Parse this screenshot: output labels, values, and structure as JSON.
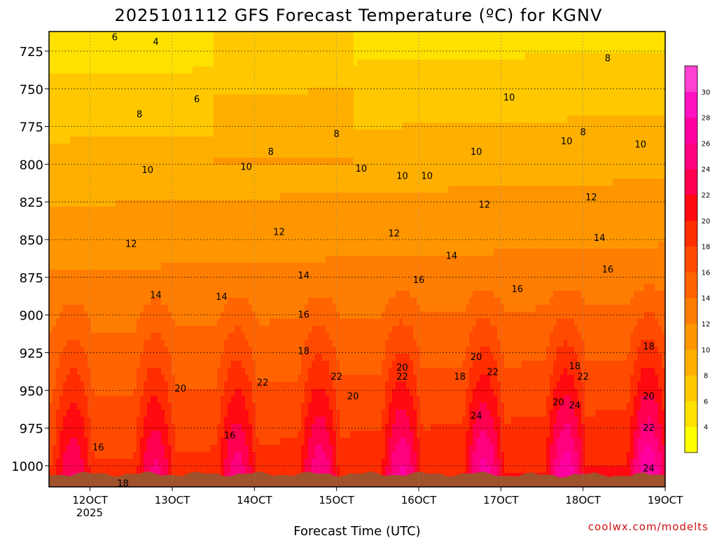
{
  "chart_data": {
    "type": "heatmap",
    "title": "2025101112 GFS Forecast Temperature (ºC) for KGNV",
    "xlabel": "Forecast Time (UTC)",
    "ylabel": "",
    "x_ticks": [
      {
        "day": 12,
        "label": "12OCT"
      },
      {
        "day": 13,
        "label": "13OCT"
      },
      {
        "day": 14,
        "label": "14OCT"
      },
      {
        "day": 15,
        "label": "15OCT"
      },
      {
        "day": 16,
        "label": "16OCT"
      },
      {
        "day": 17,
        "label": "17OCT"
      },
      {
        "day": 18,
        "label": "18OCT"
      },
      {
        "day": 19,
        "label": "19OCT"
      }
    ],
    "year_label": "2025",
    "xlim": [
      11.5,
      19.0
    ],
    "y_ticks": [
      725,
      750,
      775,
      800,
      825,
      850,
      875,
      900,
      925,
      950,
      975,
      1000
    ],
    "ylim": [
      712,
      1014
    ],
    "y_inverted": true,
    "grid": true,
    "colorbar": {
      "levels": [
        2,
        4,
        6,
        8,
        10,
        12,
        14,
        16,
        18,
        20,
        22,
        24,
        26,
        28,
        30,
        32
      ],
      "labels": [
        "4",
        "6",
        "8",
        "10",
        "12",
        "14",
        "16",
        "18",
        "20",
        "22",
        "24",
        "26",
        "28",
        "30"
      ],
      "colors": [
        "#ffff00",
        "#ffe100",
        "#ffc800",
        "#ffaf00",
        "#ff9600",
        "#ff7d00",
        "#ff6400",
        "#ff4b00",
        "#ff2d00",
        "#ff0a10",
        "#ff0050",
        "#ff0080",
        "#ff00a0",
        "#ff10c0",
        "#ff40d0"
      ]
    },
    "ground_color": "#a0522d",
    "contour_labels": [
      {
        "x": 12.1,
        "y": 988,
        "v": "16"
      },
      {
        "x": 12.4,
        "y": 1012,
        "v": "18"
      },
      {
        "x": 12.8,
        "y": 887,
        "v": "14"
      },
      {
        "x": 12.5,
        "y": 853,
        "v": "12"
      },
      {
        "x": 12.7,
        "y": 804,
        "v": "10"
      },
      {
        "x": 12.6,
        "y": 767,
        "v": "8"
      },
      {
        "x": 12.8,
        "y": 719,
        "v": "4"
      },
      {
        "x": 12.3,
        "y": 716,
        "v": "6"
      },
      {
        "x": 13.3,
        "y": 757,
        "v": "6"
      },
      {
        "x": 13.1,
        "y": 949,
        "v": "20"
      },
      {
        "x": 13.6,
        "y": 888,
        "v": "14"
      },
      {
        "x": 13.9,
        "y": 802,
        "v": "10"
      },
      {
        "x": 13.7,
        "y": 980,
        "v": "16"
      },
      {
        "x": 14.1,
        "y": 945,
        "v": "22"
      },
      {
        "x": 14.2,
        "y": 792,
        "v": "8"
      },
      {
        "x": 14.3,
        "y": 845,
        "v": "12"
      },
      {
        "x": 14.6,
        "y": 874,
        "v": "14"
      },
      {
        "x": 14.6,
        "y": 900,
        "v": "16"
      },
      {
        "x": 14.6,
        "y": 924,
        "v": "18"
      },
      {
        "x": 15.0,
        "y": 941,
        "v": "22"
      },
      {
        "x": 15.2,
        "y": 954,
        "v": "20"
      },
      {
        "x": 15.0,
        "y": 780,
        "v": "8"
      },
      {
        "x": 15.3,
        "y": 803,
        "v": "10"
      },
      {
        "x": 15.7,
        "y": 846,
        "v": "12"
      },
      {
        "x": 16.0,
        "y": 877,
        "v": "16"
      },
      {
        "x": 15.8,
        "y": 935,
        "v": "20"
      },
      {
        "x": 15.8,
        "y": 941,
        "v": "22"
      },
      {
        "x": 15.8,
        "y": 808,
        "v": "10"
      },
      {
        "x": 16.1,
        "y": 808,
        "v": "10"
      },
      {
        "x": 16.4,
        "y": 861,
        "v": "14"
      },
      {
        "x": 16.7,
        "y": 792,
        "v": "10"
      },
      {
        "x": 16.8,
        "y": 827,
        "v": "12"
      },
      {
        "x": 16.5,
        "y": 941,
        "v": "18"
      },
      {
        "x": 16.7,
        "y": 928,
        "v": "20"
      },
      {
        "x": 16.9,
        "y": 938,
        "v": "22"
      },
      {
        "x": 16.7,
        "y": 967,
        "v": "24"
      },
      {
        "x": 17.1,
        "y": 756,
        "v": "10"
      },
      {
        "x": 17.2,
        "y": 883,
        "v": "16"
      },
      {
        "x": 17.8,
        "y": 785,
        "v": "10"
      },
      {
        "x": 17.9,
        "y": 934,
        "v": "18"
      },
      {
        "x": 17.7,
        "y": 958,
        "v": "20"
      },
      {
        "x": 17.9,
        "y": 960,
        "v": "24"
      },
      {
        "x": 18.0,
        "y": 941,
        "v": "22"
      },
      {
        "x": 18.0,
        "y": 779,
        "v": "8"
      },
      {
        "x": 18.1,
        "y": 822,
        "v": "12"
      },
      {
        "x": 18.2,
        "y": 849,
        "v": "14"
      },
      {
        "x": 18.3,
        "y": 870,
        "v": "16"
      },
      {
        "x": 18.3,
        "y": 730,
        "v": "8"
      },
      {
        "x": 18.7,
        "y": 787,
        "v": "10"
      },
      {
        "x": 18.8,
        "y": 921,
        "v": "18"
      },
      {
        "x": 18.8,
        "y": 954,
        "v": "20"
      },
      {
        "x": 18.8,
        "y": 975,
        "v": "22"
      },
      {
        "x": 18.8,
        "y": 1002,
        "v": "24"
      }
    ]
  },
  "credit": "coolwx.com/modelts"
}
